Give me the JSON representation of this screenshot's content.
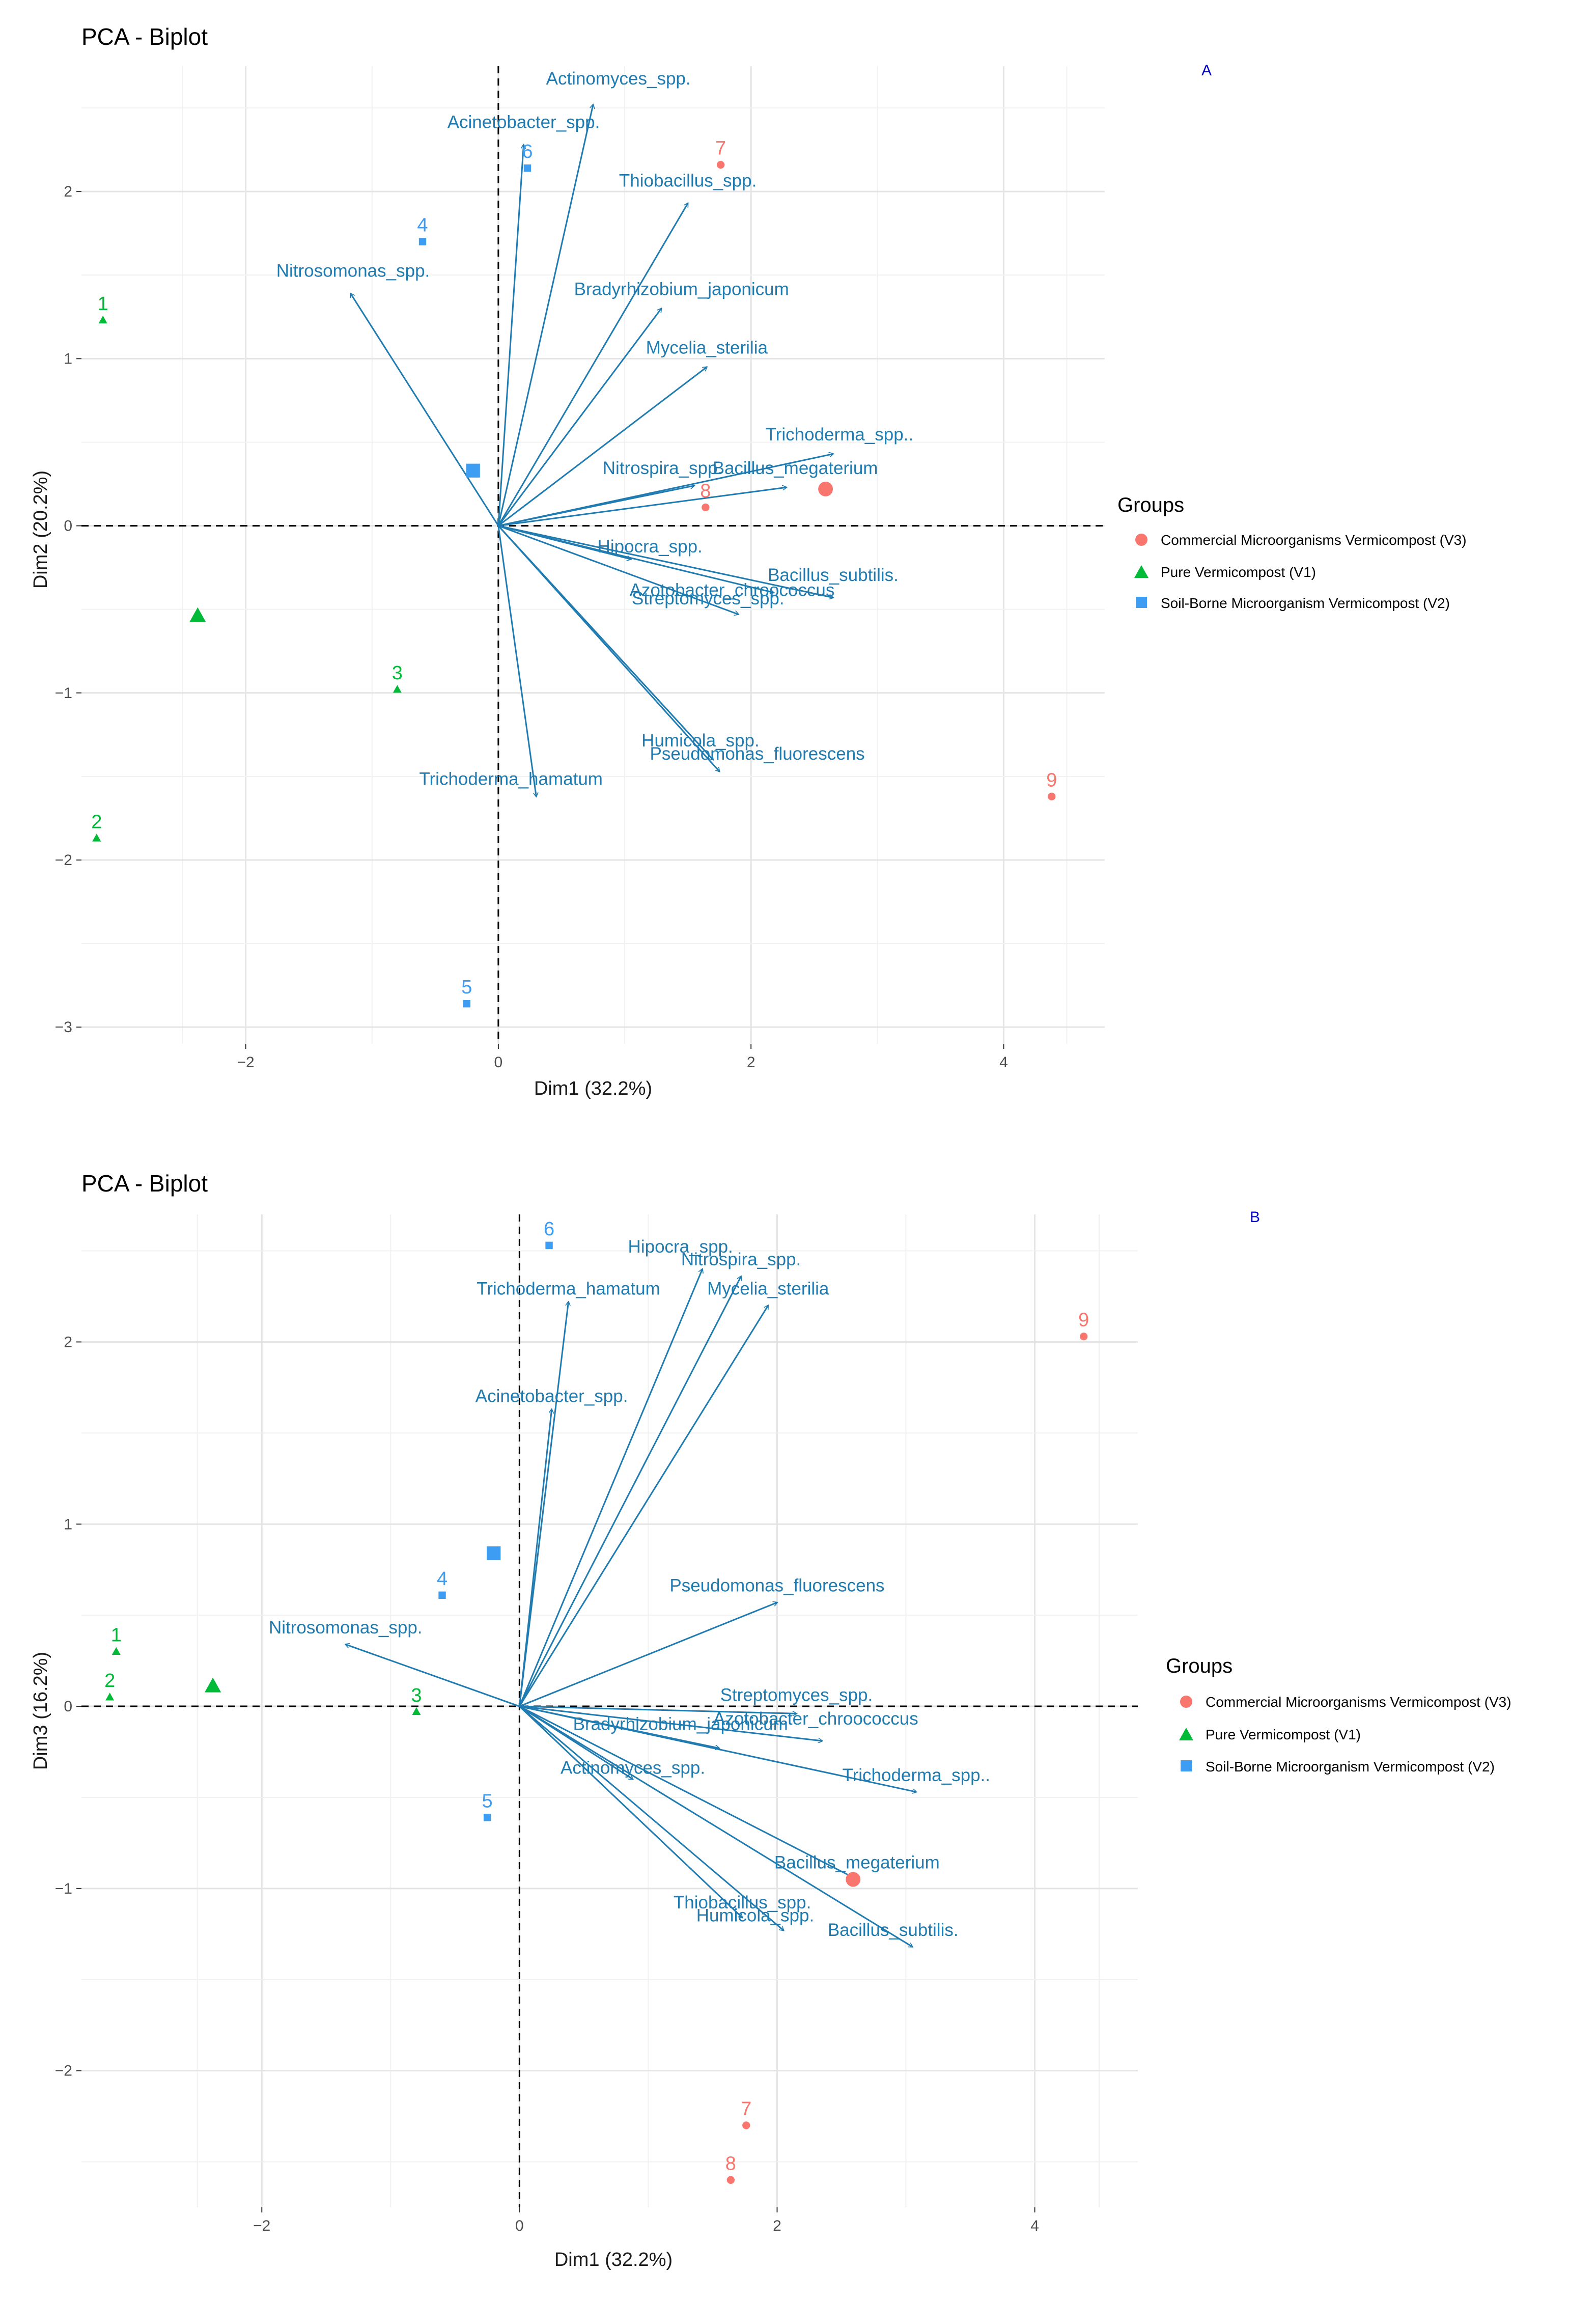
{
  "colors": {
    "arrow": "#1f7bb0",
    "V3": "#f8766d",
    "V1": "#00ba38",
    "V2": "#3d9df2",
    "grid_major": "#e4e4e4",
    "grid_minor": "#f1f1f1",
    "panel_tag": "#0000cc"
  },
  "legend": {
    "title": "Groups",
    "entries": [
      {
        "key": "V3",
        "label": "Commercial Microorganisms Vermicompost (V3)",
        "shape": "circle"
      },
      {
        "key": "V1",
        "label": "Pure Vermicompost (V1)",
        "shape": "triangle"
      },
      {
        "key": "V2",
        "label": "Soil-Borne Microorganism Vermicompost (V2)",
        "shape": "square"
      }
    ]
  },
  "chart_data": [
    {
      "type": "scatter",
      "subtype": "pca-biplot",
      "panel": "A",
      "title": "PCA - Biplot",
      "xlabel": "Dim1 (32.2%)",
      "ylabel": "Dim2 (20.2%)",
      "xlim": [
        -3.3,
        4.8
      ],
      "ylim": [
        -3.1,
        2.75
      ],
      "xticks": [
        -2,
        0,
        2,
        4
      ],
      "yticks": [
        -3,
        -2,
        -1,
        0,
        1,
        2
      ],
      "tick_labels_x": [
        "−2",
        "0",
        "2",
        "4"
      ],
      "tick_labels_y": [
        "−3",
        "−2",
        "−1",
        "0",
        "1",
        "2"
      ],
      "legend_position": "right",
      "points": [
        {
          "label": "1",
          "group": "V1",
          "x": -3.13,
          "y": 1.23
        },
        {
          "label": "2",
          "group": "V1",
          "x": -3.18,
          "y": -1.87
        },
        {
          "label": "3",
          "group": "V1",
          "x": -0.8,
          "y": -0.98
        },
        {
          "label": "4",
          "group": "V2",
          "x": -0.6,
          "y": 1.7
        },
        {
          "label": "5",
          "group": "V2",
          "x": -0.25,
          "y": -2.86
        },
        {
          "label": "6",
          "group": "V2",
          "x": 0.23,
          "y": 2.14
        },
        {
          "label": "7",
          "group": "V3",
          "x": 1.76,
          "y": 2.16
        },
        {
          "label": "8",
          "group": "V3",
          "x": 1.64,
          "y": 0.11
        },
        {
          "label": "9",
          "group": "V3",
          "x": 4.38,
          "y": -1.62
        }
      ],
      "centroids": [
        {
          "group": "V1",
          "x": -2.38,
          "y": -0.54
        },
        {
          "group": "V2",
          "x": -0.2,
          "y": 0.33
        },
        {
          "group": "V3",
          "x": 2.59,
          "y": 0.22
        }
      ],
      "variables": [
        {
          "name": "Actinomyces_spp.",
          "x": 0.75,
          "y": 2.52,
          "lx": 0.95,
          "ly": 2.64
        },
        {
          "name": "Acinetobacter_spp.",
          "x": 0.2,
          "y": 2.28,
          "lx": 0.2,
          "ly": 2.38
        },
        {
          "name": "Thiobacillus_spp.",
          "x": 1.5,
          "y": 1.93,
          "lx": 1.5,
          "ly": 2.03
        },
        {
          "name": "Nitrosomonas_spp.",
          "x": -1.17,
          "y": 1.39,
          "lx": -1.15,
          "ly": 1.49
        },
        {
          "name": "Bradyrhizobium_japonicum",
          "x": 1.29,
          "y": 1.3,
          "lx": 1.45,
          "ly": 1.38
        },
        {
          "name": "Mycelia_sterilia",
          "x": 1.65,
          "y": 0.95,
          "lx": 1.65,
          "ly": 1.03
        },
        {
          "name": "Trichoderma_spp..",
          "x": 2.65,
          "y": 0.43,
          "lx": 2.7,
          "ly": 0.51
        },
        {
          "name": "Bacillus_megaterium",
          "x": 2.28,
          "y": 0.23,
          "lx": 2.35,
          "ly": 0.31
        },
        {
          "name": "Nitrospira_spp.",
          "x": 1.55,
          "y": 0.24,
          "lx": 1.3,
          "ly": 0.31
        },
        {
          "name": "Hipocra_spp.",
          "x": 1.05,
          "y": -0.2,
          "lx": 1.2,
          "ly": -0.16
        },
        {
          "name": "Bacillus_subtilis.",
          "x": 2.65,
          "y": -0.43,
          "lx": 2.65,
          "ly": -0.33
        },
        {
          "name": "Azotobacter_chroococcus",
          "x": 2.18,
          "y": -0.4,
          "lx": 1.85,
          "ly": -0.42
        },
        {
          "name": "Streptomyces_spp.",
          "x": 1.9,
          "y": -0.53,
          "lx": 1.66,
          "ly": -0.47
        },
        {
          "name": "Humicola_spp.",
          "x": 1.7,
          "y": -1.4,
          "lx": 1.6,
          "ly": -1.32
        },
        {
          "name": "Pseudomonas_fluorescens",
          "x": 1.75,
          "y": -1.47,
          "lx": 2.05,
          "ly": -1.4
        },
        {
          "name": "Trichoderma_hamatum",
          "x": 0.3,
          "y": -1.62,
          "lx": 0.1,
          "ly": -1.55
        }
      ]
    },
    {
      "type": "scatter",
      "subtype": "pca-biplot",
      "panel": "B",
      "title": "PCA - Biplot",
      "xlabel": "Dim1 (32.2%)",
      "ylabel": "Dim3 (16.2%)",
      "xlim": [
        -3.4,
        4.8
      ],
      "ylim": [
        -2.75,
        2.7
      ],
      "xticks": [
        -2,
        0,
        2,
        4
      ],
      "yticks": [
        -2,
        -1,
        0,
        1,
        2
      ],
      "tick_labels_x": [
        "−2",
        "0",
        "2",
        "4"
      ],
      "tick_labels_y": [
        "−2",
        "−1",
        "0",
        "1",
        "2"
      ],
      "legend_position": "right",
      "points": [
        {
          "label": "1",
          "group": "V1",
          "x": -3.13,
          "y": 0.3
        },
        {
          "label": "2",
          "group": "V1",
          "x": -3.18,
          "y": 0.05
        },
        {
          "label": "3",
          "group": "V1",
          "x": -0.8,
          "y": -0.03
        },
        {
          "label": "4",
          "group": "V2",
          "x": -0.6,
          "y": 0.61
        },
        {
          "label": "5",
          "group": "V2",
          "x": -0.25,
          "y": -0.61
        },
        {
          "label": "6",
          "group": "V2",
          "x": 0.23,
          "y": 2.53
        },
        {
          "label": "7",
          "group": "V3",
          "x": 1.76,
          "y": -2.3
        },
        {
          "label": "8",
          "group": "V3",
          "x": 1.64,
          "y": -2.6
        },
        {
          "label": "9",
          "group": "V3",
          "x": 4.38,
          "y": 2.03
        }
      ],
      "centroids": [
        {
          "group": "V1",
          "x": -2.38,
          "y": 0.11
        },
        {
          "group": "V2",
          "x": -0.2,
          "y": 0.84
        },
        {
          "group": "V3",
          "x": 2.59,
          "y": -0.95
        }
      ],
      "variables": [
        {
          "name": "Hipocra_spp.",
          "x": 1.42,
          "y": 2.4,
          "lx": 1.25,
          "ly": 2.49
        },
        {
          "name": "Nitrospira_spp.",
          "x": 1.72,
          "y": 2.36,
          "lx": 1.72,
          "ly": 2.42
        },
        {
          "name": "Mycelia_sterilia",
          "x": 1.93,
          "y": 2.2,
          "lx": 1.93,
          "ly": 2.26
        },
        {
          "name": "Trichoderma_hamatum",
          "x": 0.38,
          "y": 2.22,
          "lx": 0.38,
          "ly": 2.26
        },
        {
          "name": "Acinetobacter_spp.",
          "x": 0.25,
          "y": 1.63,
          "lx": 0.25,
          "ly": 1.67
        },
        {
          "name": "Pseudomonas_fluorescens",
          "x": 2.0,
          "y": 0.57,
          "lx": 2.0,
          "ly": 0.63
        },
        {
          "name": "Nitrosomonas_spp.",
          "x": -1.35,
          "y": 0.34,
          "lx": -1.35,
          "ly": 0.4
        },
        {
          "name": "Streptomyces_spp.",
          "x": 2.15,
          "y": -0.04,
          "lx": 2.15,
          "ly": 0.03
        },
        {
          "name": "Azotobacter_chroococcus",
          "x": 2.35,
          "y": -0.19,
          "lx": 2.3,
          "ly": -0.1
        },
        {
          "name": "Bradyrhizobium_japonicum",
          "x": 1.55,
          "y": -0.23,
          "lx": 1.25,
          "ly": -0.13
        },
        {
          "name": "Trichoderma_spp..",
          "x": 3.08,
          "y": -0.47,
          "lx": 3.08,
          "ly": -0.41
        },
        {
          "name": "Actinomyces_spp.",
          "x": 0.88,
          "y": -0.4,
          "lx": 0.88,
          "ly": -0.37
        },
        {
          "name": "Bacillus_megaterium",
          "x": 2.62,
          "y": -0.95,
          "lx": 2.62,
          "ly": -0.89
        },
        {
          "name": "Thiobacillus_spp.",
          "x": 1.73,
          "y": -1.16,
          "lx": 1.73,
          "ly": -1.11
        },
        {
          "name": "Humicola_spp.",
          "x": 2.05,
          "y": -1.23,
          "lx": 1.83,
          "ly": -1.18
        },
        {
          "name": "Bacillus_subtilis.",
          "x": 3.05,
          "y": -1.32,
          "lx": 2.9,
          "ly": -1.26
        }
      ]
    }
  ]
}
